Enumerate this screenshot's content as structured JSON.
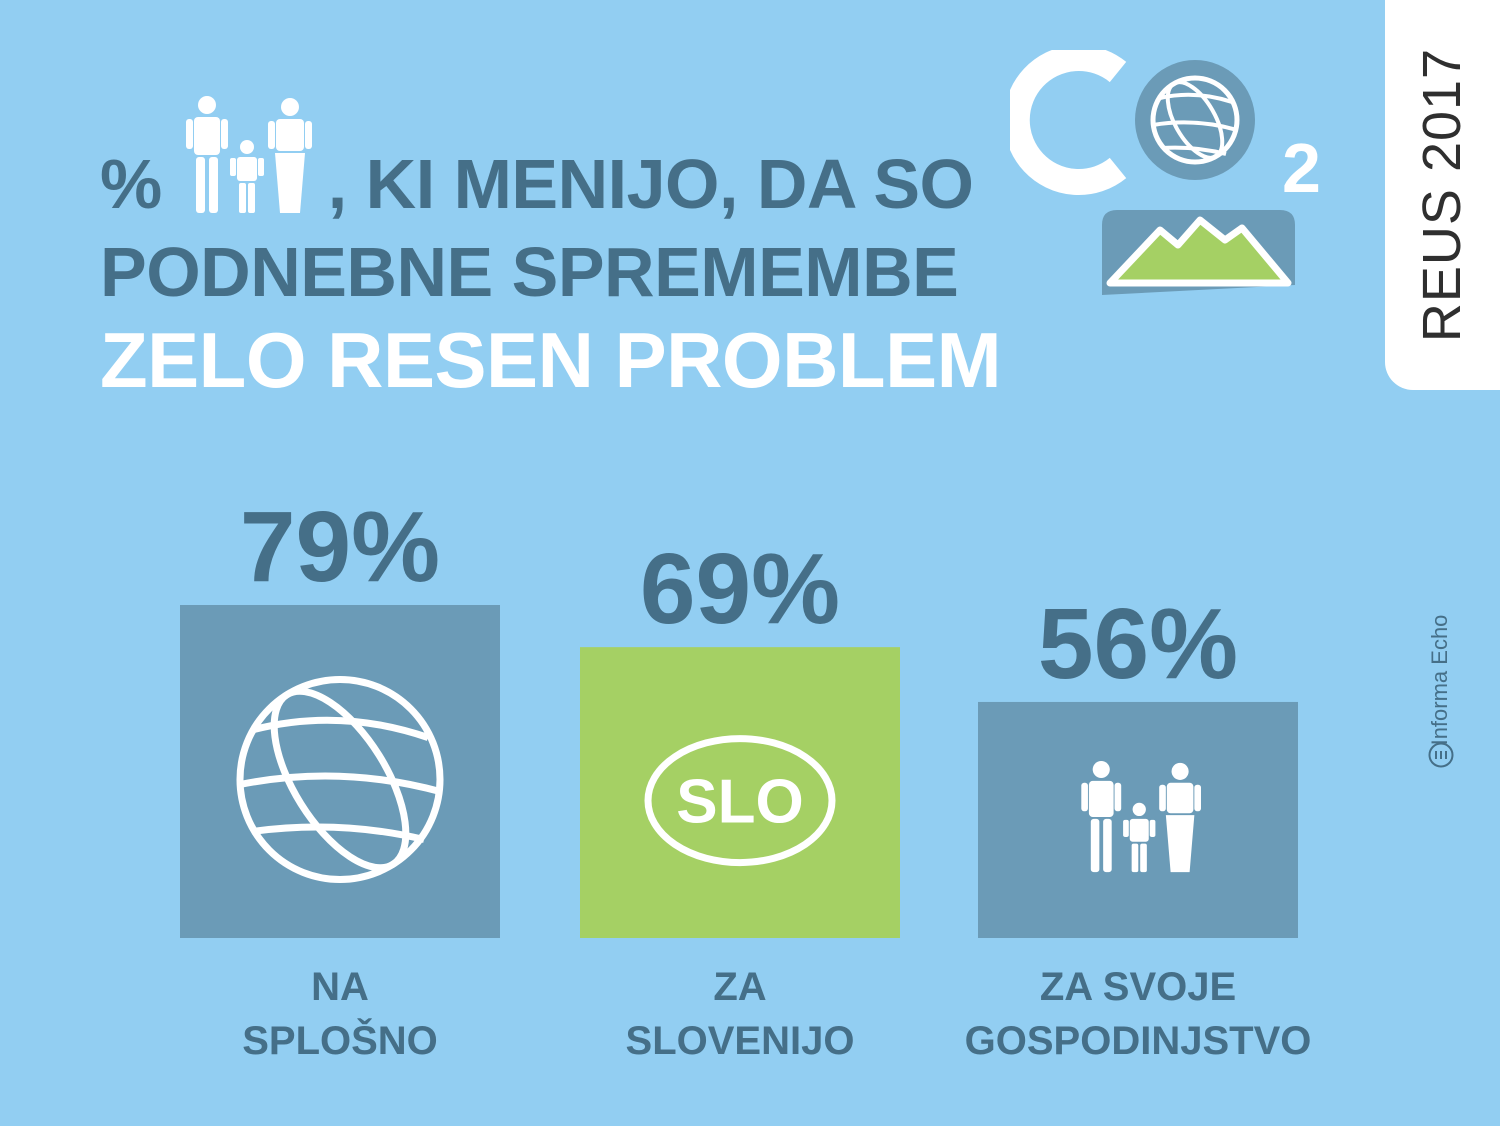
{
  "header": {
    "percent_symbol": "%",
    "line1_rest": ", KI MENIJO, DA SO",
    "line2": "PODNEBNE SPREMEMBE",
    "line3": "ZELO RESEN PROBLEM"
  },
  "badge": {
    "year_label": "REUS 2017"
  },
  "source": {
    "label": "Informa Echo"
  },
  "logo": {
    "co_text": "CO",
    "subscript": "2"
  },
  "slo_badge": {
    "label": "SLO"
  },
  "colors": {
    "background": "#92cef2",
    "blue_bar": "#6b9bb7",
    "green_bar": "#a5d064",
    "text_dark": "#456f88",
    "white": "#ffffff"
  },
  "chart_data": {
    "type": "bar",
    "categories": [
      [
        "NA",
        "SPLOŠNO"
      ],
      [
        "ZA",
        "SLOVENIJO"
      ],
      [
        "ZA SVOJE",
        "GOSPODINJSTVO"
      ]
    ],
    "values": [
      79,
      69,
      56
    ],
    "value_labels": [
      "79%",
      "69%",
      "56%"
    ],
    "bar_colors": [
      "#6b9bb7",
      "#a5d064",
      "#6b9bb7"
    ],
    "bar_icons": [
      "globe-icon",
      "slo-oval-icon",
      "family-icon"
    ],
    "unit": "%",
    "ylim": [
      0,
      100
    ]
  }
}
